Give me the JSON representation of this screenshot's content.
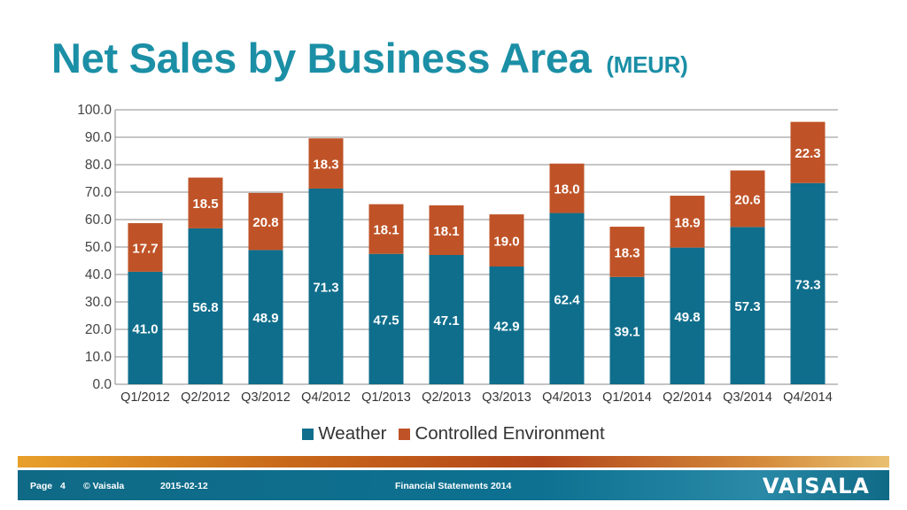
{
  "title": "Net Sales by Business Area",
  "title_unit": "(MEUR)",
  "footer": {
    "page_label": "Page",
    "page_number": "4",
    "copyright": "© Vaisala",
    "date": "2015-02-12",
    "doc_title": "Financial Statements 2014",
    "logo_text": "VAISALA"
  },
  "colors": {
    "weather": "#0f6e8c",
    "controlled_environment": "#bf5327",
    "title": "#1b8fa6"
  },
  "chart_data": {
    "type": "bar",
    "stacked": true,
    "categories": [
      "Q1/2012",
      "Q2/2012",
      "Q3/2012",
      "Q4/2012",
      "Q1/2013",
      "Q2/2013",
      "Q3/2013",
      "Q4/2013",
      "Q1/2014",
      "Q2/2014",
      "Q3/2014",
      "Q4/2014"
    ],
    "series": [
      {
        "name": "Weather",
        "color": "#0f6e8c",
        "values": [
          41.0,
          56.8,
          48.9,
          71.3,
          47.5,
          47.1,
          42.9,
          62.4,
          39.1,
          49.8,
          57.3,
          73.3
        ]
      },
      {
        "name": "Controlled Environment",
        "color": "#bf5327",
        "values": [
          17.7,
          18.5,
          20.8,
          18.3,
          18.1,
          18.1,
          19.0,
          18.0,
          18.3,
          18.9,
          20.6,
          22.3
        ]
      }
    ],
    "ylim": [
      0,
      100
    ],
    "yticks": [
      "0.0",
      "10.0",
      "20.0",
      "30.0",
      "40.0",
      "50.0",
      "60.0",
      "70.0",
      "80.0",
      "90.0",
      "100.0"
    ],
    "grid": true,
    "legend_position": "bottom"
  }
}
